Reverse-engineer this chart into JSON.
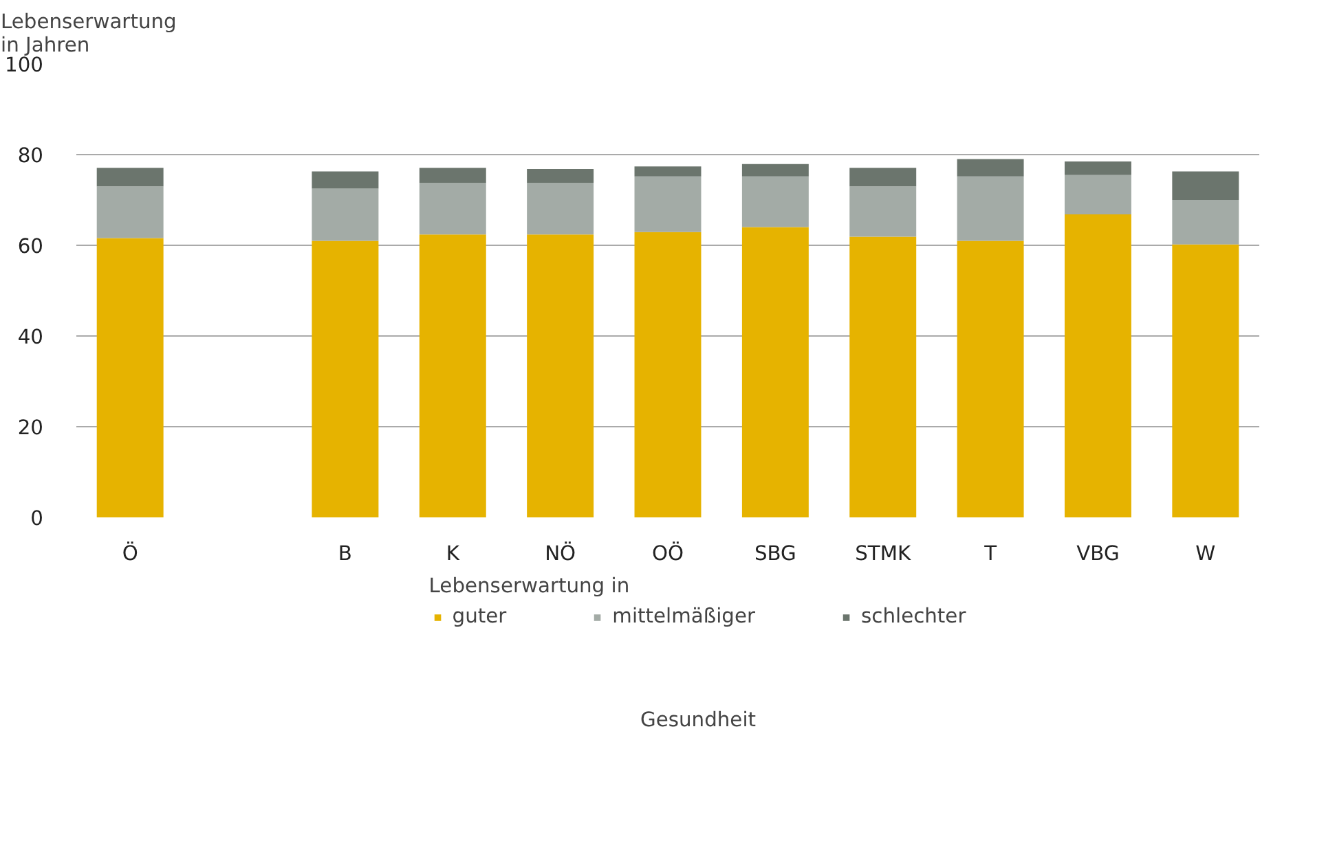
{
  "chart_data": {
    "type": "bar",
    "stacked": true,
    "ylabel": "Lebenserwartung\nin Jahren",
    "legend_title": "Lebenserwartung in",
    "annotations": [
      "Gesundheit"
    ],
    "categories": [
      "Ö",
      null,
      "B",
      "K",
      "NÖ",
      "OÖ",
      "SBG",
      "STMK",
      "T",
      "VBG",
      "W"
    ],
    "series": [
      {
        "name": "guter",
        "color": "#e6b300",
        "values": [
          61.6,
          null,
          61.0,
          62.4,
          62.4,
          62.9,
          64.0,
          61.9,
          61.0,
          66.8,
          60.2
        ]
      },
      {
        "name": "mittelmäßiger",
        "color": "#a3aba6",
        "values": [
          11.4,
          null,
          11.5,
          11.4,
          11.4,
          12.3,
          11.2,
          11.1,
          14.2,
          8.7,
          9.8
        ]
      },
      {
        "name": "schlechter",
        "color": "#6b756d",
        "values": [
          4.1,
          null,
          3.8,
          3.3,
          3.0,
          2.2,
          2.7,
          4.1,
          3.8,
          3.0,
          6.3
        ]
      }
    ],
    "ylim": [
      0,
      100
    ],
    "yticks": [
      0,
      20,
      40,
      60,
      80,
      100
    ],
    "grid": "y",
    "legend": "bottom"
  }
}
